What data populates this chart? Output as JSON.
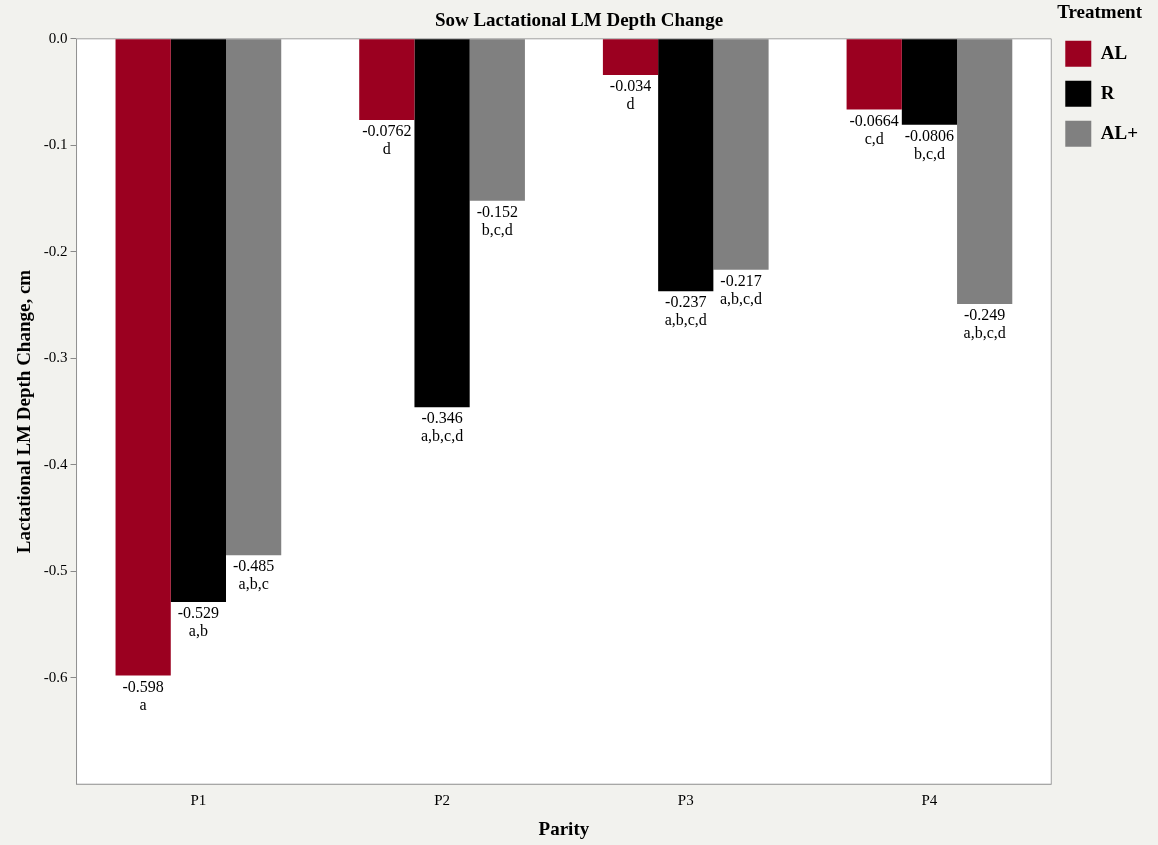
{
  "chart_data": {
    "type": "bar",
    "title": "Sow Lactational LM Depth Change",
    "xlabel": "Parity",
    "ylabel": "Lactational LM Depth Change, cm",
    "legend_title": "Treatment",
    "legend": "right",
    "categories": [
      "P1",
      "P2",
      "P3",
      "P4"
    ],
    "series": [
      {
        "name": "AL",
        "color": "#9b0020",
        "values": [
          -0.598,
          -0.0762,
          -0.034,
          -0.0664
        ],
        "value_labels": [
          "-0.598\na",
          "-0.0762\nd",
          "-0.034\nd",
          "-0.0664\nc,d"
        ]
      },
      {
        "name": "R",
        "color": "#000000",
        "values": [
          -0.529,
          -0.346,
          -0.237,
          -0.0806
        ],
        "value_labels": [
          "-0.529\na,b",
          "-0.346\na,b,c,d",
          "-0.237\na,b,c,d",
          "-0.0806\nb,c,d"
        ]
      },
      {
        "name": "AL+",
        "color": "#808080",
        "values": [
          -0.485,
          -0.152,
          -0.217,
          -0.249
        ],
        "value_labels": [
          "-0.485\na,b,c",
          "-0.152\nb,c,d",
          "-0.217\na,b,c,d",
          "-0.249\na,b,c,d"
        ]
      }
    ],
    "ylim": [
      -0.7,
      0
    ],
    "yticks": [
      {
        "value": 0,
        "label": "0.0"
      },
      -0.1,
      -0.2,
      -0.3,
      -0.4,
      -0.5,
      -0.6
    ],
    "grid": false
  }
}
